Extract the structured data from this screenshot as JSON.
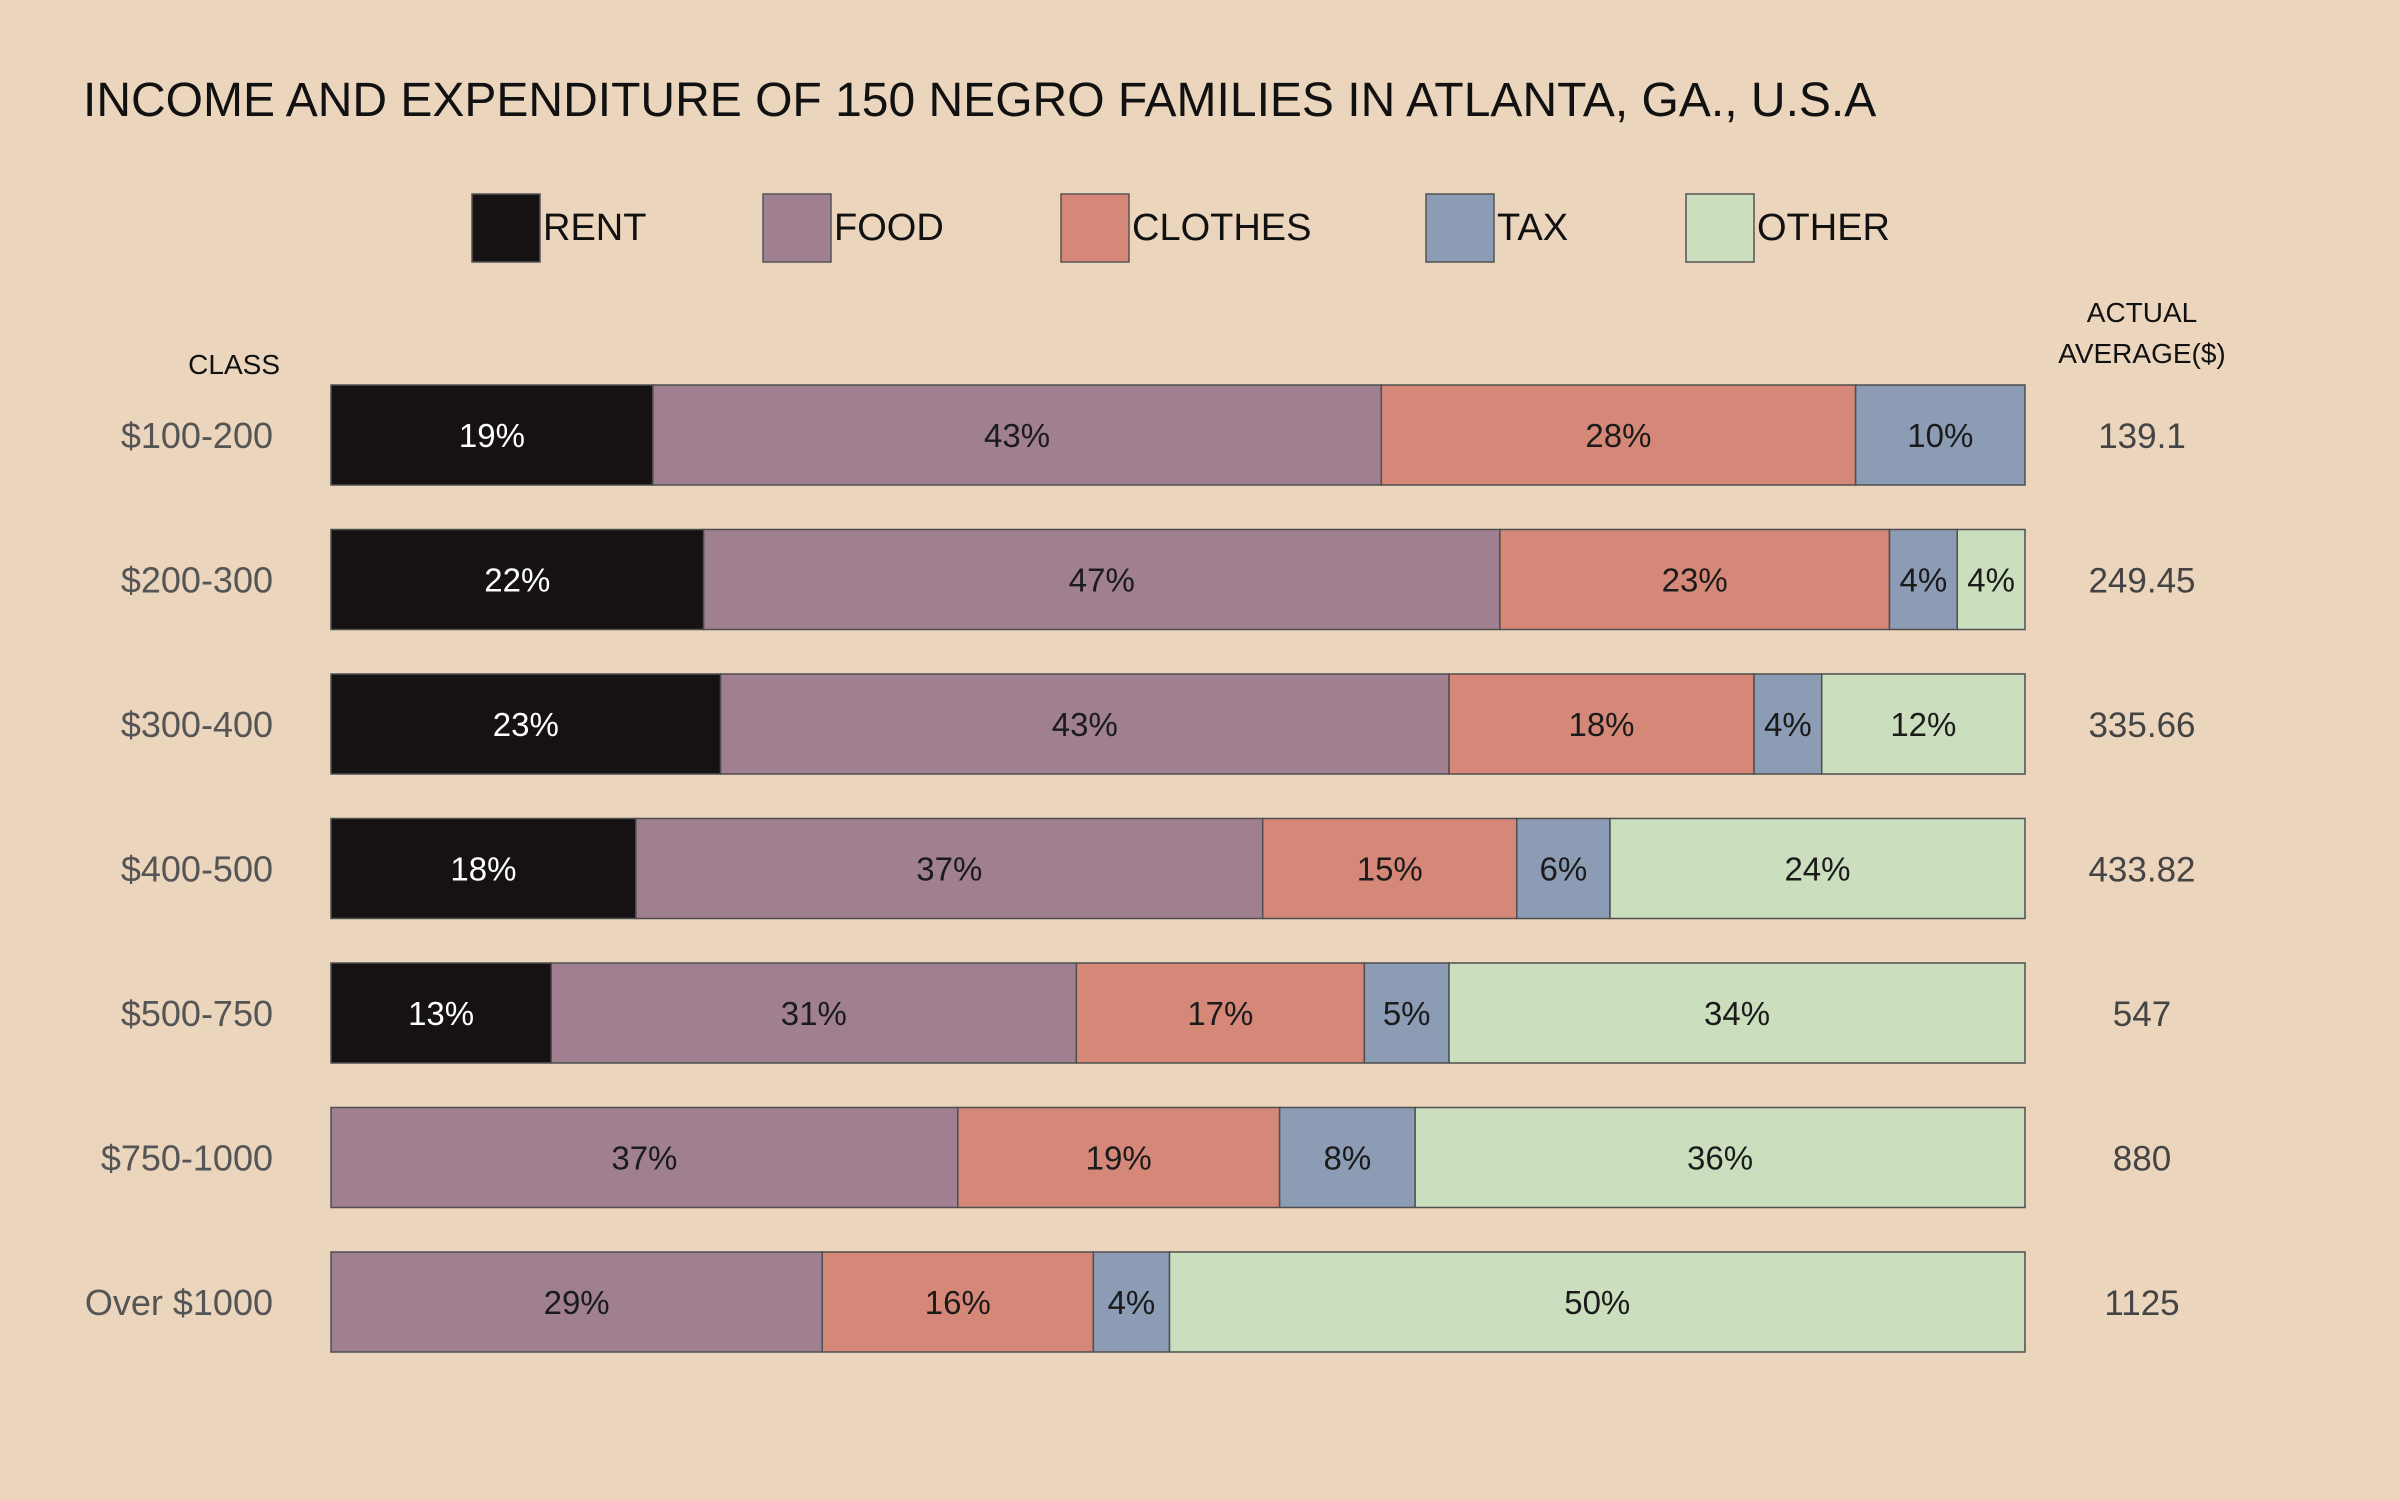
{
  "chart_data": {
    "type": "bar",
    "orientation": "horizontal",
    "stacked": true,
    "normalized": true,
    "title": "INCOME AND EXPENDITURE OF 150 NEGRO FAMILIES IN ATLANTA, GA., U.S.A",
    "class_header": "CLASS",
    "average_header": [
      "ACTUAL",
      "AVERAGE($)"
    ],
    "legend_position": "top",
    "series": [
      {
        "name": "RENT",
        "color": "#161213",
        "label_color": "#ffffff"
      },
      {
        "name": "FOOD",
        "color": "#a08090",
        "label_color": "#1b1b1b"
      },
      {
        "name": "CLOTHES",
        "color": "#d68878",
        "label_color": "#1b1b1b"
      },
      {
        "name": "TAX",
        "color": "#8c9cb4",
        "label_color": "#1b1b1b"
      },
      {
        "name": "OTHER",
        "color": "#cbdfbe",
        "label_color": "#1b1b1b"
      }
    ],
    "rows": [
      {
        "class": "$100-200",
        "average": "139.1",
        "values": [
          19,
          43,
          28,
          10,
          0
        ],
        "labels": [
          "19%",
          "43%",
          "28%",
          "10%",
          ""
        ]
      },
      {
        "class": "$200-300",
        "average": "249.45",
        "values": [
          22,
          47,
          23,
          4,
          4
        ],
        "labels": [
          "22%",
          "47%",
          "23%",
          "4%",
          "4%"
        ]
      },
      {
        "class": "$300-400",
        "average": "335.66",
        "values": [
          23,
          43,
          18,
          4,
          12
        ],
        "labels": [
          "23%",
          "43%",
          "18%",
          "4%",
          "12%"
        ]
      },
      {
        "class": "$400-500",
        "average": "433.82",
        "values": [
          18,
          37,
          15,
          5.5,
          24.5
        ],
        "labels": [
          "18%",
          "37%",
          "15%",
          "6%",
          "24%"
        ]
      },
      {
        "class": "$500-750",
        "average": "547",
        "values": [
          13,
          31,
          17,
          5,
          34
        ],
        "labels": [
          "13%",
          "31%",
          "17%",
          "5%",
          "34%"
        ]
      },
      {
        "class": "$750-1000",
        "average": "880",
        "values": [
          0,
          37,
          19,
          8,
          36
        ],
        "labels": [
          "",
          "37%",
          "19%",
          "8%",
          "36%"
        ]
      },
      {
        "class": "Over $1000",
        "average": "1125",
        "values": [
          0,
          29,
          16,
          4.5,
          50.5
        ],
        "labels": [
          "",
          "29%",
          "16%",
          "4%",
          "50%"
        ]
      }
    ]
  }
}
